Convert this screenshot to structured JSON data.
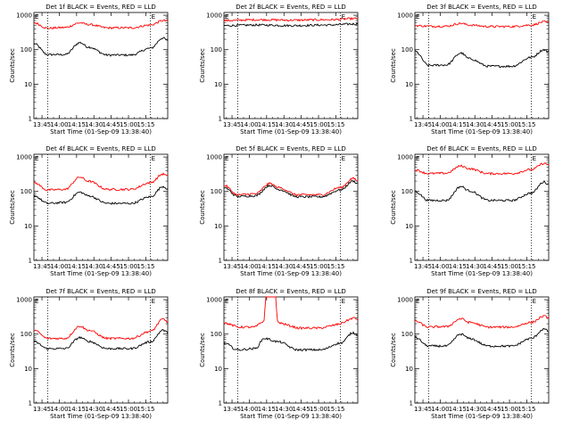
{
  "figure": {
    "xticks": [
      "13:45",
      "14:00",
      "14:15",
      "14:30",
      "14:45",
      "15:00",
      "15:15"
    ],
    "xlabel": "Start Time (01-Sep-09 13:38:40)",
    "ylabel": "Counts/sec",
    "yticks": [
      "1",
      "10",
      "100",
      "1000"
    ],
    "colors": {
      "events": "#000000",
      "lld": "#ff0000"
    }
  },
  "chart_data": [
    {
      "type": "line",
      "title": "Det 1f BLACK = Events, RED = LLD",
      "ylim": [
        1,
        1200
      ],
      "ylog": true,
      "dotted_minutes": [
        12,
        101
      ],
      "markers": [
        {
          "label": "E",
          "minute": 0
        },
        {
          "label": "E",
          "minute": 101
        }
      ],
      "series": [
        {
          "name": "BLACK = Events",
          "x": [
            0,
            12,
            27,
            40,
            47,
            64,
            84,
            101,
            112,
            116
          ],
          "values": [
            150,
            72,
            72,
            160,
            120,
            70,
            70,
            110,
            220,
            180
          ]
        },
        {
          "name": "RED = LLD",
          "x": [
            0,
            12,
            27,
            40,
            47,
            64,
            84,
            101,
            112,
            116
          ],
          "values": [
            600,
            420,
            440,
            600,
            540,
            430,
            430,
            520,
            700,
            680
          ]
        }
      ]
    },
    {
      "type": "line",
      "title": "Det 2f BLACK = Events, RED = LLD",
      "ylim": [
        1,
        1200
      ],
      "ylog": true,
      "dotted_minutes": [
        12,
        101
      ],
      "markers": [
        {
          "label": "E",
          "minute": 0
        },
        {
          "label": "E",
          "minute": 101
        }
      ],
      "series": [
        {
          "name": "BLACK = Events",
          "x": [
            0,
            30,
            60,
            90,
            116
          ],
          "values": [
            500,
            520,
            500,
            520,
            560
          ]
        },
        {
          "name": "RED = LLD",
          "x": [
            0,
            30,
            60,
            90,
            116
          ],
          "values": [
            700,
            740,
            720,
            740,
            800
          ]
        }
      ]
    },
    {
      "type": "line",
      "title": "Det 3f BLACK = Events, RED = LLD",
      "ylim": [
        1,
        1200
      ],
      "ylog": true,
      "dotted_minutes": [
        12,
        101
      ],
      "markers": [
        {
          "label": "E",
          "minute": 0
        },
        {
          "label": "E",
          "minute": 101
        }
      ],
      "series": [
        {
          "name": "BLACK = Events",
          "x": [
            0,
            12,
            27,
            40,
            47,
            64,
            84,
            101,
            112,
            116
          ],
          "values": [
            90,
            35,
            36,
            80,
            55,
            33,
            33,
            60,
            100,
            85
          ]
        },
        {
          "name": "RED = LLD",
          "x": [
            0,
            12,
            27,
            40,
            47,
            64,
            84,
            101,
            112,
            116
          ],
          "values": [
            500,
            480,
            480,
            580,
            520,
            470,
            470,
            520,
            640,
            600
          ]
        }
      ]
    },
    {
      "type": "line",
      "title": "Det 4f BLACK = Events, RED = LLD",
      "ylim": [
        1,
        1200
      ],
      "ylog": true,
      "dotted_minutes": [
        12,
        101
      ],
      "markers": [
        {
          "label": "E",
          "minute": 0
        },
        {
          "label": "E",
          "minute": 101
        }
      ],
      "series": [
        {
          "name": "BLACK = Events",
          "x": [
            0,
            12,
            27,
            40,
            47,
            64,
            84,
            101,
            112,
            116
          ],
          "values": [
            75,
            45,
            48,
            95,
            75,
            45,
            45,
            70,
            140,
            120
          ]
        },
        {
          "name": "RED = LLD",
          "x": [
            0,
            12,
            27,
            40,
            47,
            64,
            84,
            101,
            112,
            116
          ],
          "values": [
            180,
            110,
            115,
            260,
            200,
            115,
            115,
            180,
            320,
            280
          ]
        }
      ]
    },
    {
      "type": "line",
      "title": "Det 5f BLACK = Events, RED = LLD",
      "ylim": [
        1,
        1200
      ],
      "ylog": true,
      "dotted_minutes": [
        12,
        101
      ],
      "markers": [
        {
          "label": "E",
          "minute": 0
        },
        {
          "label": "E",
          "minute": 101
        }
      ],
      "series": [
        {
          "name": "BLACK = Events",
          "x": [
            0,
            12,
            27,
            40,
            47,
            64,
            84,
            101,
            112,
            116
          ],
          "values": [
            130,
            72,
            75,
            150,
            115,
            70,
            70,
            110,
            200,
            170
          ]
        },
        {
          "name": "RED = LLD",
          "x": [
            0,
            12,
            27,
            40,
            47,
            64,
            84,
            101,
            112,
            116
          ],
          "values": [
            150,
            80,
            85,
            170,
            130,
            80,
            80,
            130,
            240,
            200
          ]
        }
      ]
    },
    {
      "type": "line",
      "title": "Det 6f BLACK = Events, RED = LLD",
      "ylim": [
        1,
        1200
      ],
      "ylog": true,
      "dotted_minutes": [
        12,
        101
      ],
      "markers": [
        {
          "label": "E",
          "minute": 0
        },
        {
          "label": "E",
          "minute": 101
        }
      ],
      "series": [
        {
          "name": "BLACK = Events",
          "x": [
            0,
            12,
            27,
            40,
            47,
            64,
            84,
            101,
            112,
            116
          ],
          "values": [
            100,
            55,
            55,
            140,
            105,
            55,
            55,
            90,
            190,
            160
          ]
        },
        {
          "name": "RED = LLD",
          "x": [
            0,
            12,
            27,
            40,
            47,
            64,
            84,
            101,
            112,
            116
          ],
          "values": [
            420,
            330,
            340,
            550,
            460,
            330,
            330,
            430,
            650,
            600
          ]
        }
      ]
    },
    {
      "type": "line",
      "title": "Det 7f BLACK = Events, RED = LLD",
      "ylim": [
        1,
        1200
      ],
      "ylog": true,
      "dotted_minutes": [
        12,
        101
      ],
      "markers": [
        {
          "label": "E",
          "minute": 0
        },
        {
          "label": "E",
          "minute": 101
        }
      ],
      "series": [
        {
          "name": "BLACK = Events",
          "x": [
            0,
            12,
            27,
            40,
            47,
            64,
            84,
            101,
            112,
            116
          ],
          "values": [
            60,
            38,
            38,
            80,
            62,
            38,
            38,
            60,
            130,
            110
          ]
        },
        {
          "name": "RED = LLD",
          "x": [
            0,
            12,
            27,
            40,
            47,
            64,
            84,
            101,
            112,
            116
          ],
          "values": [
            130,
            75,
            75,
            170,
            130,
            75,
            75,
            120,
            270,
            230
          ]
        }
      ]
    },
    {
      "type": "line",
      "title": "Det 8f BLACK = Events, RED = LLD",
      "ylim": [
        1,
        1200
      ],
      "ylog": true,
      "dotted_minutes": [
        12,
        101
      ],
      "markers": [
        {
          "label": "E",
          "minute": 0
        },
        {
          "label": "E",
          "minute": 101
        }
      ],
      "series": [
        {
          "name": "BLACK = Events",
          "x": [
            0,
            12,
            27,
            35,
            47,
            64,
            84,
            101,
            112,
            116
          ],
          "values": [
            55,
            35,
            38,
            75,
            60,
            35,
            35,
            55,
            110,
            95
          ]
        },
        {
          "name": "RED = LLD",
          "x": [
            0,
            12,
            27,
            35,
            36,
            45,
            46,
            47,
            64,
            84,
            101,
            112,
            116
          ],
          "values": [
            220,
            160,
            160,
            250,
            1200,
            1200,
            260,
            220,
            150,
            150,
            200,
            300,
            260
          ]
        }
      ]
    },
    {
      "type": "line",
      "title": "Det 9f BLACK = Events, RED = LLD",
      "ylim": [
        1,
        1200
      ],
      "ylog": true,
      "dotted_minutes": [
        12,
        101
      ],
      "markers": [
        {
          "label": "E",
          "minute": 0
        },
        {
          "label": "E",
          "minute": 101
        }
      ],
      "series": [
        {
          "name": "BLACK = Events",
          "x": [
            0,
            12,
            27,
            40,
            47,
            64,
            84,
            101,
            112,
            116
          ],
          "values": [
            80,
            45,
            45,
            100,
            75,
            45,
            45,
            75,
            140,
            120
          ]
        },
        {
          "name": "RED = LLD",
          "x": [
            0,
            12,
            27,
            40,
            47,
            64,
            84,
            101,
            112,
            116
          ],
          "values": [
            240,
            160,
            165,
            280,
            220,
            160,
            160,
            220,
            330,
            300
          ]
        }
      ]
    }
  ]
}
